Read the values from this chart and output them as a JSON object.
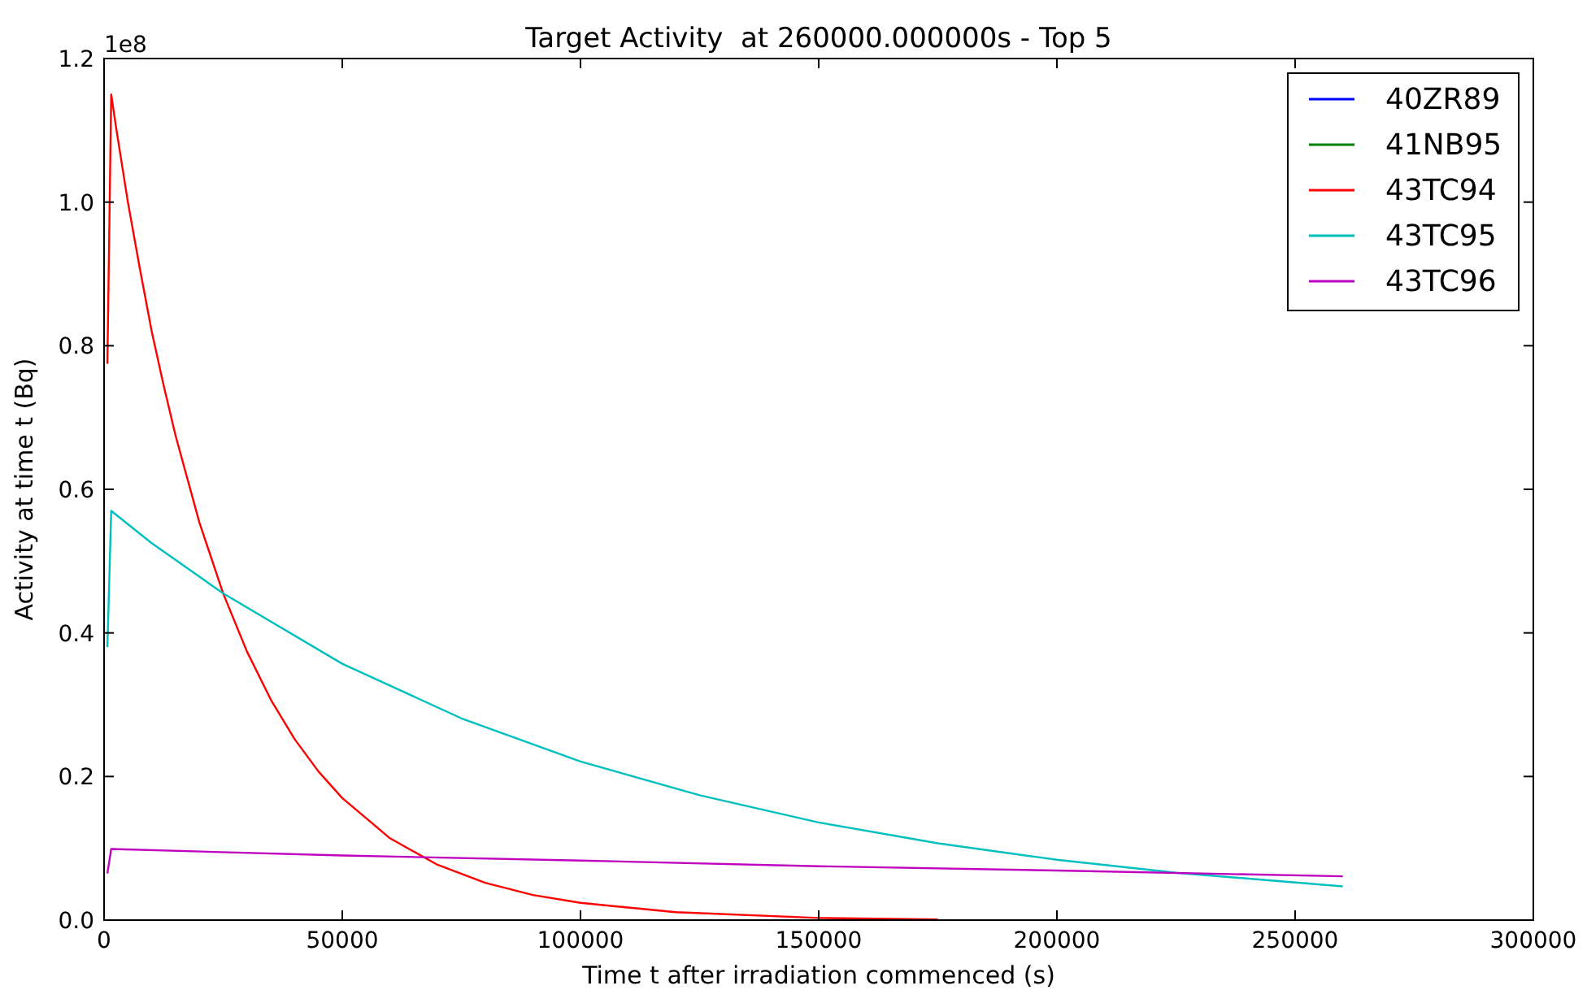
{
  "chart_data": {
    "type": "line",
    "title": "Target Activity  at 260000.000000s - Top 5",
    "xlabel": "Time t after irradiation commenced (s)",
    "ylabel": "Activity at time t (Bq)",
    "annotations": [
      "1e8"
    ],
    "xlim": [
      0,
      300000
    ],
    "xticks": [
      0,
      50000,
      100000,
      150000,
      200000,
      250000,
      300000
    ],
    "ylim": [
      0,
      1.2
    ],
    "yticks": [
      {
        "value": 0,
        "label": "0.0"
      },
      0.2,
      0.4,
      0.6,
      0.8,
      {
        "value": 1,
        "label": "1.0"
      },
      1.2
    ],
    "legend": "top right",
    "grid": false,
    "series": [
      {
        "name": "40ZR89",
        "color": "#0000ff"
      },
      {
        "name": "41NB95",
        "color": "#008000"
      },
      {
        "name": "43TC94",
        "color": "#ff0000",
        "x": [
          700,
          1500,
          2500,
          5000,
          7500,
          10000,
          12500,
          15000,
          20000,
          25000,
          30000,
          35000,
          40000,
          45000,
          50000,
          60000,
          70000,
          80000,
          90000,
          100000,
          120000,
          150000,
          175000
        ],
        "values": [
          0.775,
          1.15,
          1.105,
          1.0,
          0.908,
          0.82,
          0.745,
          0.675,
          0.554,
          0.455,
          0.374,
          0.307,
          0.252,
          0.207,
          0.17,
          0.114,
          0.077,
          0.052,
          0.035,
          0.024,
          0.011,
          0.003,
          0.001
        ]
      },
      {
        "name": "43TC95",
        "color": "#00bfbf",
        "x": [
          700,
          1500,
          10000,
          25000,
          50000,
          75000,
          100000,
          125000,
          150000,
          175000,
          200000,
          225000,
          260000
        ],
        "values": [
          0.38,
          0.57,
          0.525,
          0.455,
          0.357,
          0.281,
          0.221,
          0.174,
          0.136,
          0.107,
          0.084,
          0.066,
          0.047
        ]
      },
      {
        "name": "43TC96",
        "color": "#bf00bf",
        "x": [
          700,
          1500,
          50000,
          100000,
          150000,
          200000,
          260000
        ],
        "values": [
          0.065,
          0.099,
          0.09,
          0.083,
          0.075,
          0.069,
          0.061
        ]
      }
    ]
  }
}
